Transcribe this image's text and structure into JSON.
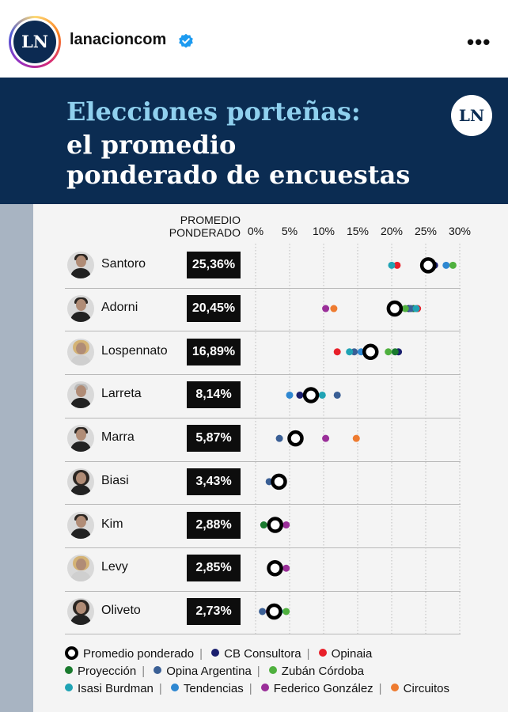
{
  "header": {
    "avatar_text": "LN",
    "username": "lanacioncom",
    "more_label": "•••"
  },
  "banner": {
    "title_line1": "Elecciones porteñas:",
    "title_line2": "el promedio",
    "title_line3": "ponderado de encuestas",
    "logo_text": "LN",
    "colors": {
      "background": "#0b2c52",
      "accent": "#8fd0ee"
    }
  },
  "chart_data": {
    "type": "scatter",
    "column_header": "PROMEDIO PONDERADO",
    "x_ticks": [
      "0%",
      "5%",
      "10%",
      "15%",
      "20%",
      "25%",
      "30%"
    ],
    "x_range": [
      0,
      30
    ],
    "grid": true,
    "legend_position": "bottom",
    "categories": [
      "Santoro",
      "Adorni",
      "Lospennato",
      "Larreta",
      "Marra",
      "Biasi",
      "Kim",
      "Levy",
      "Oliveto"
    ],
    "average_labels": [
      "25,36%",
      "20,45%",
      "16,89%",
      "8,14%",
      "5,87%",
      "3,43%",
      "2,88%",
      "2,85%",
      "2,73%"
    ],
    "average_values": [
      25.36,
      20.45,
      16.89,
      8.14,
      5.87,
      3.43,
      2.88,
      2.85,
      2.73
    ],
    "series": [
      {
        "name": "CB Consultora",
        "color": "#1a1f6e",
        "values": [
          26.3,
          22.5,
          21.0,
          6.5,
          null,
          null,
          null,
          null,
          null
        ]
      },
      {
        "name": "Opinaia",
        "color": "#e8202a",
        "values": [
          20.8,
          23.8,
          12.0,
          null,
          null,
          null,
          null,
          null,
          null
        ]
      },
      {
        "name": "Proyección",
        "color": "#1a7a2e",
        "values": [
          null,
          23.2,
          20.5,
          null,
          null,
          null,
          1.2,
          null,
          null
        ]
      },
      {
        "name": "Opina Argentina",
        "color": "#3a5f95",
        "values": [
          null,
          22.8,
          14.5,
          12.0,
          3.5,
          2.0,
          null,
          null,
          1.0
        ]
      },
      {
        "name": "Zubán Córdoba",
        "color": "#4fb03e",
        "values": [
          29.0,
          22.0,
          19.5,
          null,
          null,
          null,
          null,
          null,
          4.5
        ]
      },
      {
        "name": "Isasi Burdman",
        "color": "#1fa3b4",
        "values": [
          20.0,
          23.6,
          13.8,
          9.8,
          null,
          4.0,
          null,
          null,
          3.5
        ]
      },
      {
        "name": "Tendencias",
        "color": "#2e87d1",
        "values": [
          28.0,
          null,
          15.5,
          5.0,
          null,
          null,
          null,
          null,
          null
        ]
      },
      {
        "name": "Federico González",
        "color": "#9a2f99",
        "values": [
          null,
          10.3,
          null,
          null,
          10.3,
          null,
          4.5,
          4.5,
          2.0
        ]
      },
      {
        "name": "Circuitos",
        "color": "#ee7b30",
        "values": [
          24.8,
          11.5,
          null,
          null,
          14.8,
          null,
          null,
          null,
          null
        ]
      }
    ],
    "average_series_name": "Promedio ponderado"
  },
  "legend": {
    "items": [
      {
        "label": "Promedio ponderado",
        "kind": "ring",
        "color": "#000000"
      },
      {
        "label": "CB Consultora",
        "kind": "dot",
        "color": "#1a1f6e"
      },
      {
        "label": "Opinaia",
        "kind": "dot",
        "color": "#e8202a"
      },
      {
        "label": "Proyección",
        "kind": "dot",
        "color": "#1a7a2e"
      },
      {
        "label": "Opina Argentina",
        "kind": "dot",
        "color": "#3a5f95"
      },
      {
        "label": "Zubán Córdoba",
        "kind": "dot",
        "color": "#4fb03e"
      },
      {
        "label": "Isasi Burdman",
        "kind": "dot",
        "color": "#1fa3b4"
      },
      {
        "label": "Tendencias",
        "kind": "dot",
        "color": "#2e87d1"
      },
      {
        "label": "Federico González",
        "kind": "dot",
        "color": "#9a2f99"
      },
      {
        "label": "Circuitos",
        "kind": "dot",
        "color": "#ee7b30"
      }
    ],
    "separator": "|"
  }
}
